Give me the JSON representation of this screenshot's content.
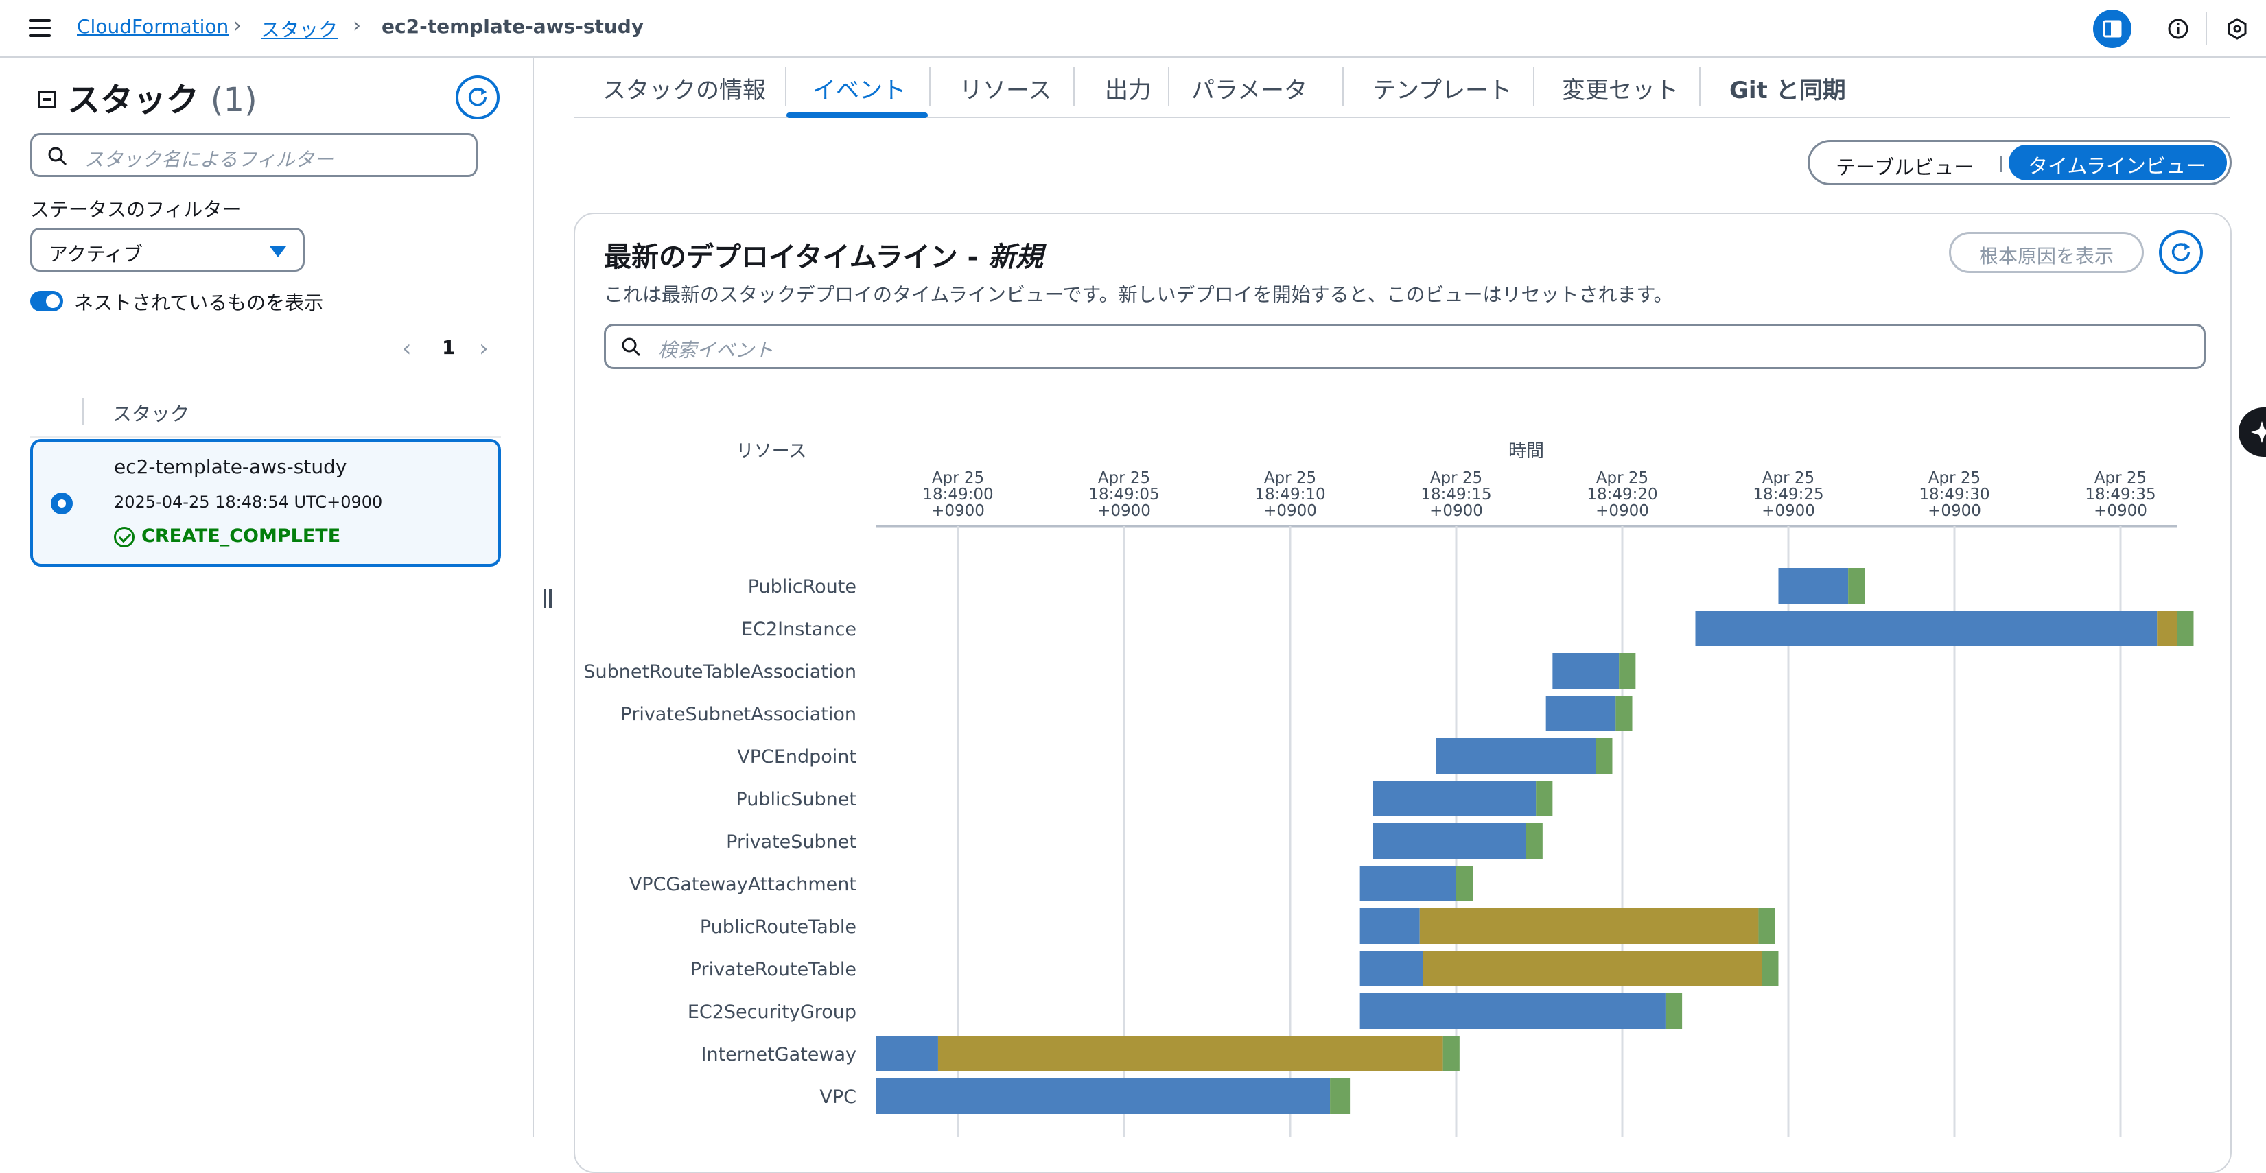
{
  "header": {
    "breadcrumbs": [
      "CloudFormation",
      "スタック",
      "ec2-template-aws-study"
    ],
    "icons": [
      "menu-icon",
      "panel-toggle-icon",
      "info-icon",
      "settings-hex-icon"
    ]
  },
  "sidebar": {
    "title": "スタック",
    "count": "(1)",
    "filter_placeholder": "スタック名によるフィルター",
    "status_filter_label": "ステータスのフィルター",
    "status_filter_value": "アクティブ",
    "nested_toggle_label": "ネストされているものを表示",
    "nested_toggle_on": true,
    "page": "1",
    "column_header": "スタック",
    "stack": {
      "name": "ec2-template-aws-study",
      "created": "2025-04-25 18:48:54 UTC+0900",
      "status": "CREATE_COMPLETE"
    }
  },
  "tabs": [
    {
      "label": "スタックの情報",
      "active": false
    },
    {
      "label": "イベント",
      "active": true
    },
    {
      "label": "リソース",
      "active": false
    },
    {
      "label": "出力",
      "active": false
    },
    {
      "label": "パラメータ",
      "active": false
    },
    {
      "label": "テンプレート",
      "active": false
    },
    {
      "label": "変更セット",
      "active": false
    },
    {
      "label": "Git と同期",
      "active": false
    }
  ],
  "view_toggle": {
    "table": "テーブルビュー",
    "timeline": "タイムラインビュー",
    "selected": "timeline"
  },
  "timeline": {
    "title": "最新のデプロイタイムライン - ",
    "title_suffix": "新規",
    "description": "これは最新のスタックデプロイのタイムラインビューです。新しいデプロイを開始すると、このビューはリセットされます。",
    "root_cause_button": "根本原因を表示",
    "search_placeholder": "検索イベント"
  },
  "chart_data": {
    "type": "gantt",
    "row_header": "リソース",
    "time_header": "時間",
    "x_ticks": [
      {
        "line1": "Apr 25",
        "line2": "18:49:00",
        "line3": "+0900",
        "t": 0
      },
      {
        "line1": "Apr 25",
        "line2": "18:49:05",
        "line3": "+0900",
        "t": 5
      },
      {
        "line1": "Apr 25",
        "line2": "18:49:10",
        "line3": "+0900",
        "t": 10
      },
      {
        "line1": "Apr 25",
        "line2": "18:49:15",
        "line3": "+0900",
        "t": 15
      },
      {
        "line1": "Apr 25",
        "line2": "18:49:20",
        "line3": "+0900",
        "t": 20
      },
      {
        "line1": "Apr 25",
        "line2": "18:49:25",
        "line3": "+0900",
        "t": 25
      },
      {
        "line1": "Apr 25",
        "line2": "18:49:30",
        "line3": "+0900",
        "t": 30
      },
      {
        "line1": "Apr 25",
        "line2": "18:49:35",
        "line3": "+0900",
        "t": 35
      }
    ],
    "time_unit": "seconds after 18:49:00",
    "colors": {
      "in_progress": "#4a80bf",
      "waiting": "#ab9539",
      "complete": "#6fa35e"
    },
    "rows": [
      {
        "resource": "PublicRoute",
        "segments": [
          [
            24.7,
            26.8,
            "in_progress"
          ],
          [
            26.8,
            27.3,
            "complete"
          ]
        ]
      },
      {
        "resource": "EC2Instance",
        "segments": [
          [
            22.2,
            36.1,
            "in_progress"
          ],
          [
            36.1,
            36.7,
            "waiting"
          ],
          [
            36.7,
            37.2,
            "complete"
          ]
        ]
      },
      {
        "resource": "SubnetRouteTableAssociation",
        "segments": [
          [
            17.9,
            19.9,
            "in_progress"
          ],
          [
            19.9,
            20.4,
            "complete"
          ]
        ]
      },
      {
        "resource": "PrivateSubnetAssociation",
        "segments": [
          [
            17.7,
            19.8,
            "in_progress"
          ],
          [
            19.8,
            20.3,
            "complete"
          ]
        ]
      },
      {
        "resource": "VPCEndpoint",
        "segments": [
          [
            14.4,
            19.2,
            "in_progress"
          ],
          [
            19.2,
            19.7,
            "complete"
          ]
        ]
      },
      {
        "resource": "PublicSubnet",
        "segments": [
          [
            12.5,
            17.4,
            "in_progress"
          ],
          [
            17.4,
            17.9,
            "complete"
          ]
        ]
      },
      {
        "resource": "PrivateSubnet",
        "segments": [
          [
            12.5,
            17.1,
            "in_progress"
          ],
          [
            17.1,
            17.6,
            "complete"
          ]
        ]
      },
      {
        "resource": "VPCGatewayAttachment",
        "segments": [
          [
            12.1,
            15.0,
            "in_progress"
          ],
          [
            15.0,
            15.5,
            "complete"
          ]
        ]
      },
      {
        "resource": "PublicRouteTable",
        "segments": [
          [
            12.1,
            13.9,
            "in_progress"
          ],
          [
            13.9,
            24.1,
            "waiting"
          ],
          [
            24.1,
            24.6,
            "complete"
          ]
        ]
      },
      {
        "resource": "PrivateRouteTable",
        "segments": [
          [
            12.1,
            14.0,
            "in_progress"
          ],
          [
            14.0,
            24.2,
            "waiting"
          ],
          [
            24.2,
            24.7,
            "complete"
          ]
        ]
      },
      {
        "resource": "EC2SecurityGroup",
        "segments": [
          [
            12.1,
            21.3,
            "in_progress"
          ],
          [
            21.3,
            21.8,
            "complete"
          ]
        ]
      },
      {
        "resource": "InternetGateway",
        "segments": [
          [
            -2.5,
            -0.6,
            "in_progress"
          ],
          [
            -0.6,
            14.6,
            "waiting"
          ],
          [
            14.6,
            15.1,
            "complete"
          ]
        ]
      },
      {
        "resource": "VPC",
        "segments": [
          [
            -2.5,
            11.2,
            "in_progress"
          ],
          [
            11.2,
            11.8,
            "complete"
          ]
        ]
      }
    ]
  }
}
